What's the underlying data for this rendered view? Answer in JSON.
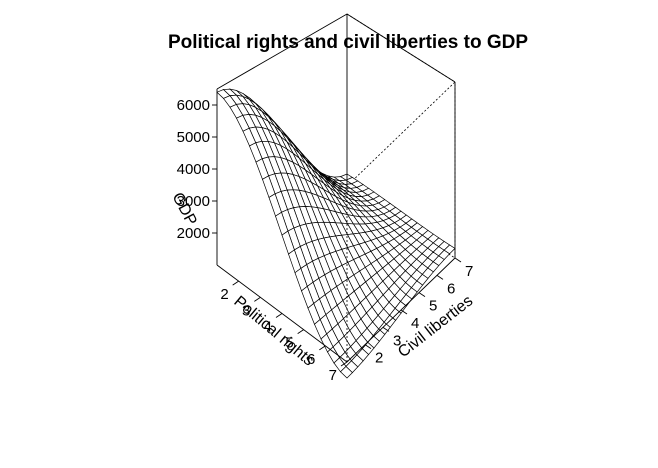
{
  "chart_data": {
    "type": "surface",
    "title": "Political rights and civil liberties to GDP",
    "xlabel": "Political rights",
    "ylabel": "Civil liberties",
    "zlabel": "GDP",
    "x_ticks": [
      2,
      3,
      4,
      5,
      6,
      7
    ],
    "y_ticks": [
      2,
      3,
      4,
      5,
      6,
      7
    ],
    "z_ticks": [
      2000,
      3000,
      4000,
      5000,
      6000
    ],
    "xlim": [
      1,
      7
    ],
    "ylim": [
      1,
      7
    ],
    "zlim": [
      1000,
      6500
    ],
    "surface_corners": {
      "political_1_civil_1": 6400,
      "political_7_civil_1": 500,
      "political_1_civil_7": 1500,
      "political_7_civil_7": 1300
    },
    "grid_lines": 20
  }
}
